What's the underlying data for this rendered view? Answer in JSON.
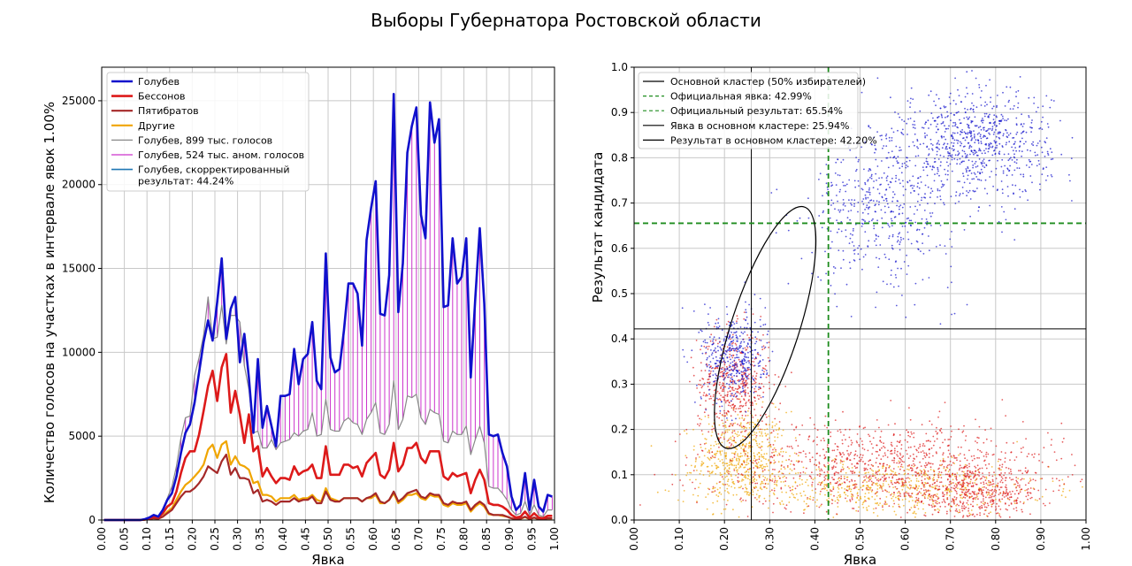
{
  "suptitle": "Выборы Губернатора Ростовской области",
  "colors": {
    "golubev": "#1010cc",
    "bessonov": "#dd1a1a",
    "pyatibratov": "#a52828",
    "others": "#f0a500",
    "total_gray": "#888888",
    "anomalous_magenta": "#cc33cc",
    "corrected": "#1f77b4",
    "official_green": "#1e8c1e",
    "cluster_black": "#000000",
    "grid": "#c8c8c8"
  },
  "chart_data": [
    {
      "type": "line",
      "xlabel": "Явка",
      "ylabel": "Количество голосов на участках в интервале явок 1.00%",
      "xlim": [
        0,
        1
      ],
      "ylim": [
        0,
        27000
      ],
      "xticks": [
        "0.00",
        "0.05",
        "0.10",
        "0.15",
        "0.20",
        "0.25",
        "0.30",
        "0.35",
        "0.40",
        "0.45",
        "0.50",
        "0.55",
        "0.60",
        "0.65",
        "0.70",
        "0.75",
        "0.80",
        "0.85",
        "0.90",
        "0.95",
        "1.00"
      ],
      "yticks": [
        "0",
        "5000",
        "10000",
        "15000",
        "20000",
        "25000"
      ],
      "grid": true,
      "legend_position": "top-left",
      "x": [
        0.005,
        0.015,
        0.025,
        0.035,
        0.045,
        0.055,
        0.065,
        0.075,
        0.085,
        0.095,
        0.105,
        0.115,
        0.125,
        0.135,
        0.145,
        0.155,
        0.165,
        0.175,
        0.185,
        0.195,
        0.205,
        0.215,
        0.225,
        0.235,
        0.245,
        0.255,
        0.265,
        0.275,
        0.285,
        0.295,
        0.305,
        0.315,
        0.325,
        0.335,
        0.345,
        0.355,
        0.365,
        0.375,
        0.385,
        0.395,
        0.405,
        0.415,
        0.425,
        0.435,
        0.445,
        0.455,
        0.465,
        0.475,
        0.485,
        0.495,
        0.505,
        0.515,
        0.525,
        0.535,
        0.545,
        0.555,
        0.565,
        0.575,
        0.585,
        0.595,
        0.605,
        0.615,
        0.625,
        0.635,
        0.645,
        0.655,
        0.665,
        0.675,
        0.685,
        0.695,
        0.705,
        0.715,
        0.725,
        0.735,
        0.745,
        0.755,
        0.765,
        0.775,
        0.785,
        0.795,
        0.805,
        0.815,
        0.825,
        0.835,
        0.845,
        0.855,
        0.865,
        0.875,
        0.885,
        0.895,
        0.905,
        0.915,
        0.925,
        0.935,
        0.945,
        0.955,
        0.965,
        0.975,
        0.985,
        0.995
      ],
      "series": [
        {
          "name": "Голубев",
          "color_key": "golubev",
          "width": 2.6,
          "values": [
            0,
            0,
            0,
            0,
            0,
            0,
            0,
            0,
            0,
            50,
            150,
            300,
            200,
            600,
            1200,
            1600,
            2600,
            4000,
            5200,
            5700,
            7000,
            8800,
            10600,
            11900,
            10700,
            13000,
            15600,
            10800,
            12600,
            13300,
            9400,
            11100,
            8500,
            5200,
            9600,
            5500,
            6800,
            5600,
            4400,
            7400,
            7400,
            7500,
            10200,
            8100,
            9600,
            9900,
            11800,
            8300,
            7800,
            15900,
            9700,
            8800,
            9000,
            11300,
            14100,
            14100,
            13500,
            10400,
            16700,
            18600,
            20200,
            12300,
            12200,
            14600,
            25400,
            12400,
            15300,
            21900,
            23500,
            24600,
            18200,
            16800,
            24900,
            22500,
            23900,
            12700,
            12800,
            16800,
            14100,
            14500,
            16800,
            8500,
            13200,
            17400,
            12900,
            5100,
            5000,
            5100,
            4000,
            3200,
            1400,
            600,
            900,
            2800,
            600,
            2400,
            800,
            500,
            1500,
            1400
          ]
        },
        {
          "name": "Бессонов",
          "color_key": "bessonov",
          "width": 2.6,
          "values": [
            0,
            0,
            0,
            0,
            0,
            0,
            0,
            0,
            0,
            30,
            80,
            200,
            150,
            400,
            800,
            1000,
            1700,
            2800,
            3700,
            4100,
            4100,
            5100,
            6500,
            8000,
            8900,
            7100,
            9100,
            9900,
            6400,
            7700,
            6300,
            4600,
            6300,
            4100,
            4400,
            2600,
            3100,
            2600,
            2200,
            2500,
            2500,
            2400,
            3200,
            2700,
            2900,
            3000,
            3300,
            2500,
            2500,
            4400,
            2700,
            2700,
            2700,
            3300,
            3300,
            3100,
            3200,
            2600,
            3400,
            3700,
            4000,
            2700,
            2500,
            3000,
            4600,
            2900,
            3300,
            4300,
            4300,
            4600,
            3700,
            3400,
            4100,
            4100,
            4100,
            2600,
            2400,
            2800,
            2600,
            2700,
            2800,
            1600,
            2400,
            3000,
            2400,
            1000,
            900,
            900,
            800,
            600,
            300,
            150,
            200,
            500,
            150,
            400,
            150,
            100,
            250,
            250
          ]
        },
        {
          "name": "Пятибратов",
          "color_key": "pyatibratov",
          "width": 2.2,
          "values": [
            0,
            0,
            0,
            0,
            0,
            0,
            0,
            0,
            0,
            20,
            60,
            100,
            80,
            200,
            400,
            600,
            1000,
            1400,
            1700,
            1700,
            1900,
            2200,
            2600,
            3200,
            3000,
            2800,
            3500,
            3900,
            2700,
            3100,
            2500,
            2500,
            2400,
            1600,
            1800,
            1100,
            1200,
            1100,
            900,
            1100,
            1100,
            1100,
            1300,
            1100,
            1200,
            1200,
            1400,
            1000,
            1000,
            1700,
            1200,
            1100,
            1100,
            1300,
            1300,
            1300,
            1300,
            1100,
            1300,
            1400,
            1600,
            1100,
            1000,
            1200,
            1700,
            1100,
            1300,
            1600,
            1700,
            1800,
            1400,
            1300,
            1600,
            1500,
            1500,
            1000,
            900,
            1100,
            1000,
            1000,
            1100,
            600,
            900,
            1100,
            900,
            400,
            300,
            300,
            300,
            200,
            100,
            50,
            80,
            200,
            50,
            150,
            50,
            40,
            100,
            100
          ]
        },
        {
          "name": "Другие",
          "color_key": "others",
          "width": 2.2,
          "values": [
            0,
            0,
            0,
            0,
            0,
            0,
            0,
            0,
            0,
            20,
            60,
            100,
            80,
            200,
            500,
            700,
            1200,
            1700,
            2100,
            2300,
            2600,
            2900,
            3300,
            4200,
            4500,
            3700,
            4500,
            4700,
            3300,
            3800,
            3300,
            3200,
            3000,
            2200,
            2300,
            1500,
            1500,
            1400,
            1100,
            1300,
            1300,
            1300,
            1500,
            1200,
            1300,
            1300,
            1500,
            1200,
            1100,
            1900,
            1300,
            1200,
            1100,
            1300,
            1300,
            1300,
            1300,
            1100,
            1300,
            1300,
            1500,
            1000,
            1000,
            1200,
            1600,
            1000,
            1200,
            1500,
            1500,
            1600,
            1300,
            1200,
            1500,
            1400,
            1400,
            900,
            800,
            1000,
            900,
            900,
            1000,
            500,
            800,
            1000,
            800,
            350,
            300,
            300,
            250,
            200,
            100,
            50,
            70,
            180,
            50,
            130,
            50,
            40,
            90,
            90
          ]
        },
        {
          "name": "Голубев, 899 тыс. голосов",
          "color_key": "total_gray",
          "width": 1.2,
          "values": [
            0,
            0,
            0,
            0,
            0,
            0,
            0,
            0,
            0,
            50,
            150,
            300,
            200,
            600,
            1300,
            2000,
            3200,
            4900,
            6100,
            6200,
            8600,
            9700,
            11000,
            13300,
            10800,
            10900,
            12800,
            10500,
            12200,
            12200,
            11800,
            9200,
            7800,
            5200,
            5300,
            4300,
            4300,
            4800,
            4200,
            4600,
            4700,
            4800,
            5200,
            5000,
            5300,
            5400,
            6400,
            5000,
            5100,
            7200,
            5400,
            5300,
            5300,
            5900,
            6100,
            5800,
            5700,
            5100,
            6000,
            6400,
            7000,
            5200,
            5100,
            5700,
            8300,
            5400,
            6000,
            7400,
            7300,
            7500,
            6100,
            5700,
            6600,
            6400,
            6300,
            4700,
            4600,
            5300,
            5100,
            5100,
            5600,
            3900,
            4800,
            5600,
            4600,
            2000,
            1900,
            1900,
            1600,
            1200,
            600,
            300,
            400,
            1100,
            300,
            900,
            300,
            200,
            600,
            600
          ]
        }
      ],
      "anomalous_bars": {
        "name": "Голубев, 524 тыс. аном. голосов",
        "color_key": "anomalous_magenta",
        "note_same_x_as_series": true
      },
      "legend": [
        {
          "label": "Голубев",
          "color_key": "golubev",
          "width": 2.6
        },
        {
          "label": "Бессонов",
          "color_key": "bessonov",
          "width": 2.6
        },
        {
          "label": "Пятибратов",
          "color_key": "pyatibratov",
          "width": 2.2
        },
        {
          "label": "Другие",
          "color_key": "others",
          "width": 2.2
        },
        {
          "label": "Голубев, 899 тыс. голосов",
          "color_key": "total_gray",
          "width": 1.2
        },
        {
          "label": "Голубев, 524 тыс. аном. голосов",
          "color_key": "anomalous_magenta",
          "width": 1.2
        },
        {
          "label": "Голубев, скорректированный",
          "label2": "результат: 44.24%",
          "color_key": "corrected",
          "width": 1.6
        }
      ]
    },
    {
      "type": "scatter",
      "xlabel": "Явка",
      "ylabel": "Результат кандидата",
      "xlim": [
        0,
        1
      ],
      "ylim": [
        0,
        1
      ],
      "xticks": [
        "0.00",
        "0.10",
        "0.20",
        "0.30",
        "0.40",
        "0.50",
        "0.60",
        "0.70",
        "0.80",
        "0.90",
        "1.00"
      ],
      "yticks": [
        "0.0",
        "0.1",
        "0.2",
        "0.3",
        "0.4",
        "0.5",
        "0.6",
        "0.7",
        "0.8",
        "0.9",
        "1.0"
      ],
      "grid": true,
      "legend_position": "top-left",
      "official_turnout": 0.4299,
      "official_result": 0.6554,
      "cluster_turnout": 0.2594,
      "cluster_result": 0.422,
      "cluster_ellipse": {
        "center": [
          0.29,
          0.425
        ],
        "semi_axes": [
          0.075,
          0.28
        ],
        "rotation_deg": 18
      },
      "point_clouds": [
        {
          "name": "Голубев",
          "color_key": "golubev",
          "count": 1700,
          "groups": [
            {
              "center": [
                0.76,
                0.83
              ],
              "spread": [
                0.08,
                0.06
              ],
              "share": 0.45
            },
            {
              "center": [
                0.55,
                0.7
              ],
              "spread": [
                0.08,
                0.09
              ],
              "share": 0.3
            },
            {
              "center": [
                0.22,
                0.36
              ],
              "spread": [
                0.035,
                0.05
              ],
              "share": 0.25
            }
          ]
        },
        {
          "name": "Бессонов",
          "color_key": "bessonov",
          "count": 2000,
          "groups": [
            {
              "center": [
                0.22,
                0.3
              ],
              "spread": [
                0.04,
                0.06
              ],
              "share": 0.25
            },
            {
              "center": [
                0.55,
                0.12
              ],
              "spread": [
                0.2,
                0.05
              ],
              "share": 0.5
            },
            {
              "center": [
                0.75,
                0.06
              ],
              "spread": [
                0.08,
                0.03
              ],
              "share": 0.25
            }
          ]
        },
        {
          "name": "Другие",
          "color_key": "others",
          "count": 1200,
          "groups": [
            {
              "center": [
                0.24,
                0.14
              ],
              "spread": [
                0.05,
                0.05
              ],
              "share": 0.45
            },
            {
              "center": [
                0.55,
                0.07
              ],
              "spread": [
                0.18,
                0.03
              ],
              "share": 0.55
            }
          ]
        }
      ],
      "legend": [
        {
          "label": "Основной кластер (50% избирателей)",
          "color_key": "cluster_black",
          "dash": false
        },
        {
          "label": "Официальная явка: 42.99%",
          "color_key": "official_green",
          "dash": true
        },
        {
          "label": "Официальный результат: 65.54%",
          "color_key": "official_green",
          "dash": true
        },
        {
          "label": "Явка в основном кластере: 25.94%",
          "color_key": "cluster_black",
          "dash": false
        },
        {
          "label": "Результат в основном кластере: 42.20%",
          "color_key": "cluster_black",
          "dash": false
        }
      ]
    }
  ]
}
